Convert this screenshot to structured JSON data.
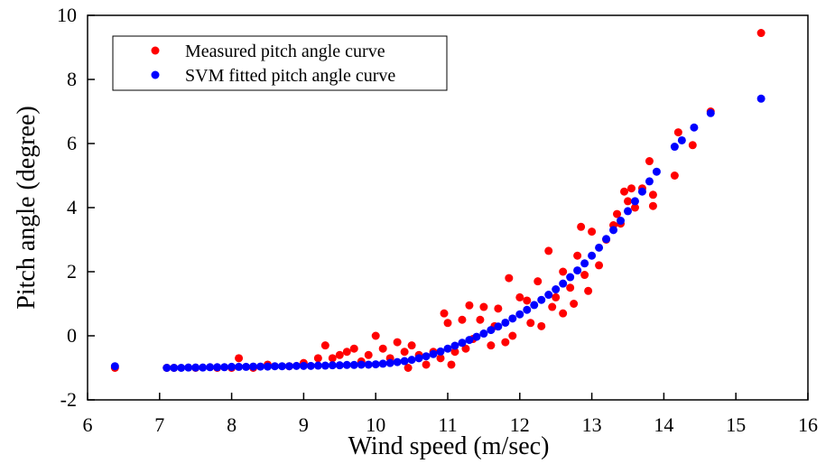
{
  "chart_data": {
    "type": "scatter",
    "xlabel": "Wind speed (m/sec)",
    "ylabel": "Pitch angle (degree)",
    "xlim": [
      6,
      16
    ],
    "ylim": [
      -2,
      10
    ],
    "xticks": [
      6,
      7,
      8,
      9,
      10,
      11,
      12,
      13,
      14,
      15,
      16
    ],
    "yticks": [
      -2,
      0,
      2,
      4,
      6,
      8,
      10
    ],
    "legend": "upper-left",
    "series": [
      {
        "name": "Measured pitch angle curve",
        "color": "#ff0000",
        "x": [
          6.38,
          8.1,
          15.35,
          14.65,
          14.4,
          14.2,
          14.15,
          13.85,
          13.85,
          13.8,
          13.55,
          13.45,
          13.3,
          13.0,
          12.95,
          12.85,
          12.8,
          12.6,
          12.6,
          12.4,
          12.25,
          12.1,
          11.85,
          11.8,
          11.7,
          11.6,
          11.5,
          11.45,
          11.3,
          11.2,
          11.1,
          11.0,
          10.95,
          10.8,
          10.7,
          10.5,
          10.4,
          10.3,
          10.2,
          10.0,
          9.9,
          9.7,
          9.5,
          9.3,
          9.2,
          9.0,
          8.8,
          8.5,
          8.3,
          8.0,
          7.8,
          7.5,
          7.2,
          7.1,
          11.9,
          12.0,
          12.3,
          12.5,
          12.7,
          13.1,
          13.2,
          13.35,
          13.5,
          13.6,
          11.65,
          11.35,
          10.9,
          10.6,
          10.1,
          9.6,
          9.4,
          9.8,
          10.45,
          11.05,
          11.25,
          12.15,
          12.45,
          12.75,
          12.9,
          13.4,
          13.7
        ],
        "values": [
          -1.0,
          -0.7,
          9.45,
          7.0,
          5.95,
          6.35,
          5.0,
          4.4,
          4.05,
          5.45,
          4.6,
          4.5,
          3.45,
          3.25,
          1.4,
          3.4,
          2.5,
          2.0,
          0.7,
          2.65,
          1.7,
          1.1,
          1.8,
          -0.2,
          0.85,
          -0.3,
          0.9,
          0.5,
          0.95,
          0.5,
          -0.5,
          0.4,
          0.7,
          -0.5,
          -0.9,
          -0.3,
          -0.5,
          -0.2,
          -0.7,
          0.0,
          -0.6,
          -0.4,
          -0.6,
          -0.3,
          -0.7,
          -0.85,
          -0.95,
          -0.9,
          -1.0,
          -1.0,
          -1.0,
          -1.0,
          -1.0,
          -1.0,
          0.0,
          1.2,
          0.3,
          1.2,
          1.5,
          2.2,
          3.0,
          3.8,
          4.2,
          4.0,
          0.3,
          -0.1,
          -0.7,
          -0.6,
          -0.4,
          -0.5,
          -0.7,
          -0.8,
          -1.0,
          -0.9,
          -0.4,
          0.4,
          0.9,
          1.0,
          1.9,
          3.5,
          4.6
        ]
      },
      {
        "name": "SVM fitted pitch angle curve",
        "color": "#0000ff",
        "x": [
          6.38,
          7.1,
          7.2,
          7.3,
          7.4,
          7.5,
          7.6,
          7.7,
          7.8,
          7.9,
          8.0,
          8.1,
          8.2,
          8.3,
          8.4,
          8.5,
          8.6,
          8.7,
          8.8,
          8.9,
          9.0,
          9.1,
          9.2,
          9.3,
          9.4,
          9.5,
          9.6,
          9.7,
          9.8,
          9.9,
          10.0,
          10.1,
          10.2,
          10.3,
          10.4,
          10.5,
          10.6,
          10.7,
          10.8,
          10.9,
          11.0,
          11.1,
          11.2,
          11.3,
          11.4,
          11.5,
          11.6,
          11.7,
          11.8,
          11.9,
          12.0,
          12.1,
          12.2,
          12.3,
          12.4,
          12.5,
          12.6,
          12.7,
          12.8,
          12.9,
          13.0,
          13.1,
          13.2,
          13.3,
          13.4,
          13.5,
          13.6,
          13.7,
          13.8,
          13.9,
          14.15,
          14.25,
          14.42,
          14.65,
          15.35
        ],
        "values": [
          -0.95,
          -1.0,
          -1.0,
          -1.0,
          -0.99,
          -0.99,
          -0.99,
          -0.98,
          -0.98,
          -0.98,
          -0.97,
          -0.97,
          -0.97,
          -0.96,
          -0.96,
          -0.96,
          -0.95,
          -0.95,
          -0.95,
          -0.94,
          -0.94,
          -0.94,
          -0.93,
          -0.93,
          -0.92,
          -0.92,
          -0.91,
          -0.91,
          -0.9,
          -0.9,
          -0.89,
          -0.87,
          -0.85,
          -0.82,
          -0.79,
          -0.75,
          -0.7,
          -0.64,
          -0.57,
          -0.49,
          -0.4,
          -0.31,
          -0.22,
          -0.13,
          -0.03,
          0.07,
          0.18,
          0.29,
          0.41,
          0.54,
          0.67,
          0.81,
          0.96,
          1.12,
          1.28,
          1.45,
          1.63,
          1.83,
          2.04,
          2.26,
          2.5,
          2.75,
          3.02,
          3.3,
          3.59,
          3.89,
          4.2,
          4.5,
          4.82,
          5.12,
          5.9,
          6.1,
          6.5,
          6.95,
          7.4
        ]
      }
    ]
  }
}
